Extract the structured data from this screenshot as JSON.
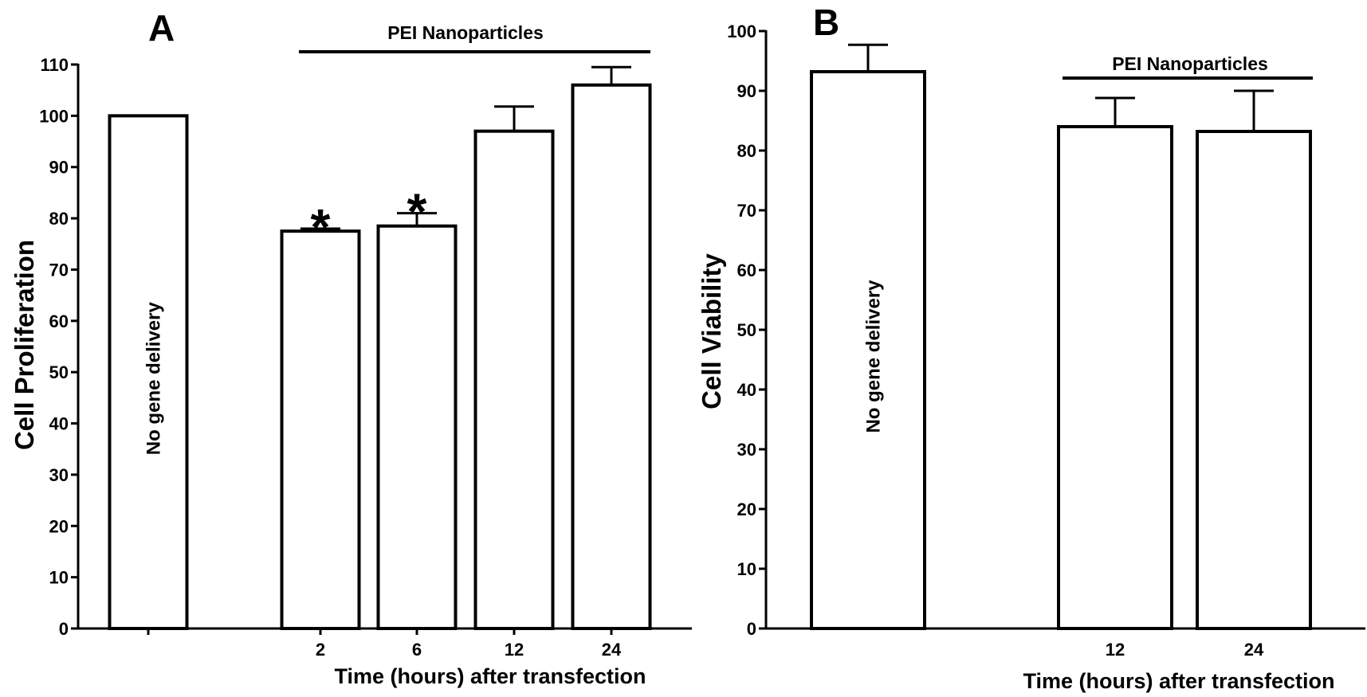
{
  "chart_data": [
    {
      "type": "bar",
      "panel": "A",
      "ylabel": "Cell Proliferation",
      "xlabel": "Time (hours) after transfection",
      "ylim": [
        0,
        110
      ],
      "yticks": [
        0,
        10,
        20,
        30,
        40,
        50,
        60,
        70,
        80,
        90,
        100,
        110
      ],
      "grid": false,
      "bracket_label": "PEI Nanoparticles",
      "categories": [
        "",
        "2",
        "6",
        "12",
        "24"
      ],
      "values": [
        100,
        77.5,
        78.5,
        97,
        106
      ],
      "errors": [
        0,
        0.5,
        2.5,
        4.8,
        3.5
      ],
      "bar_labels": [
        "No gene delivery",
        "",
        "",
        "",
        ""
      ],
      "significance": [
        "",
        "*",
        "*",
        "",
        ""
      ]
    },
    {
      "type": "bar",
      "panel": "B",
      "ylabel": "Cell Viability",
      "xlabel": "Time (hours) after transfection",
      "ylim": [
        0,
        100
      ],
      "yticks": [
        0,
        10,
        20,
        30,
        40,
        50,
        60,
        70,
        80,
        90,
        100
      ],
      "grid": false,
      "bracket_label": "PEI Nanoparticles",
      "categories": [
        "",
        "12",
        "24"
      ],
      "values": [
        93.2,
        84,
        83.2
      ],
      "errors": [
        4.5,
        4.8,
        6.8
      ],
      "bar_labels": [
        "No gene delivery",
        "",
        ""
      ],
      "significance": [
        "",
        "",
        ""
      ]
    }
  ]
}
